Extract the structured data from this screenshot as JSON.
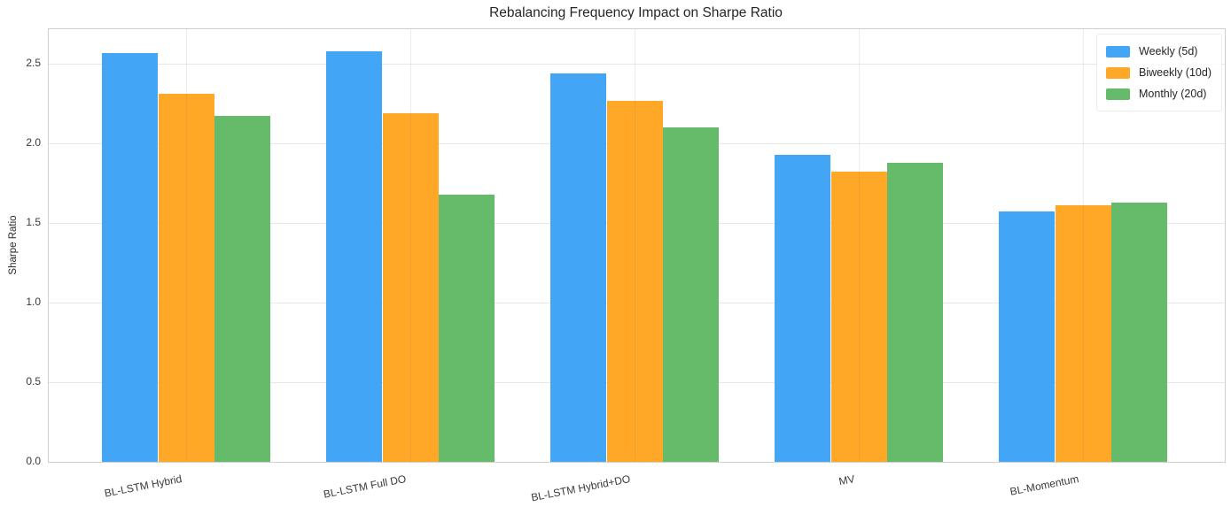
{
  "chart_data": {
    "type": "bar",
    "title": "Rebalancing Frequency Impact on Sharpe Ratio",
    "xlabel": "",
    "ylabel": "Sharpe Ratio",
    "categories": [
      "BL-LSTM Hybrid",
      "BL-LSTM Full DO",
      "BL-LSTM Hybrid+DO",
      "MV",
      "BL-Momentum"
    ],
    "series": [
      {
        "name": "Weekly (5d)",
        "color": "#42A5F5",
        "values": [
          2.57,
          2.58,
          2.44,
          1.93,
          1.57
        ]
      },
      {
        "name": "Biweekly (10d)",
        "color": "#FFA726",
        "values": [
          2.31,
          2.19,
          2.27,
          1.82,
          1.61
        ]
      },
      {
        "name": "Monthly (20d)",
        "color": "#66BB6A",
        "values": [
          2.17,
          1.68,
          2.1,
          1.88,
          1.63
        ]
      }
    ],
    "ylim": [
      0,
      2.717
    ],
    "yticks": [
      0.0,
      0.5,
      1.0,
      1.5,
      2.0,
      2.5
    ],
    "ytick_labels": [
      "0.0",
      "0.5",
      "1.0",
      "1.5",
      "2.0",
      "2.5"
    ],
    "grid": true,
    "legend_position": "upper right",
    "bar_width": 0.25,
    "background_color": "#ffffff",
    "spine_color": "#cfcfcf",
    "gridline_color": "#e7e7e7"
  }
}
